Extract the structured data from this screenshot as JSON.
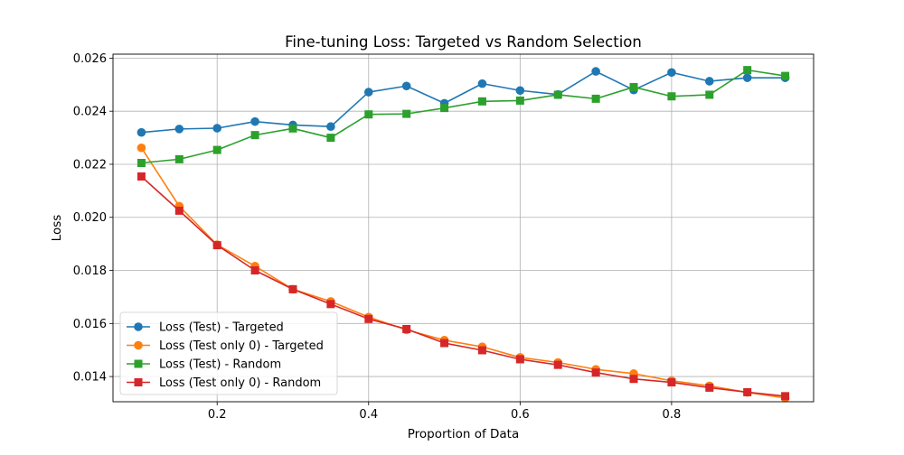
{
  "chart_data": {
    "type": "line",
    "title": "Fine-tuning Loss: Targeted vs Random Selection",
    "xlabel": "Proportion of Data",
    "ylabel": "Loss",
    "xlim": [
      0.0625,
      0.9875
    ],
    "ylim": [
      0.01305,
      0.02615
    ],
    "xticks": [
      0.2,
      0.4,
      0.6,
      0.8
    ],
    "xtick_labels": [
      "0.2",
      "0.4",
      "0.6",
      "0.8"
    ],
    "yticks": [
      0.014,
      0.016,
      0.018,
      0.02,
      0.022,
      0.024,
      0.026
    ],
    "ytick_labels": [
      "0.014",
      "0.016",
      "0.018",
      "0.020",
      "0.022",
      "0.024",
      "0.026"
    ],
    "grid": true,
    "legend_position": "lower-left",
    "x": [
      0.1,
      0.15,
      0.2,
      0.25,
      0.3,
      0.35,
      0.4,
      0.45,
      0.5,
      0.55,
      0.6,
      0.65,
      0.7,
      0.75,
      0.8,
      0.85,
      0.9,
      0.95
    ],
    "series": [
      {
        "name": "Loss (Test) - Targeted",
        "color": "#1f77b4",
        "marker": "circle",
        "values": [
          0.0232,
          0.02333,
          0.02336,
          0.02361,
          0.02348,
          0.02342,
          0.02472,
          0.02495,
          0.0243,
          0.02504,
          0.02478,
          0.02463,
          0.0255,
          0.0248,
          0.02546,
          0.02513,
          0.02526,
          0.02526
        ]
      },
      {
        "name": "Loss (Test only 0) - Targeted",
        "color": "#ff7f0e",
        "marker": "circle",
        "values": [
          0.02262,
          0.02042,
          0.01897,
          0.01816,
          0.01729,
          0.01683,
          0.01624,
          0.01576,
          0.01537,
          0.01512,
          0.01472,
          0.01453,
          0.01427,
          0.01411,
          0.01384,
          0.01365,
          0.0134,
          0.01319
        ]
      },
      {
        "name": "Loss (Test) - Random",
        "color": "#2ca02c",
        "marker": "square",
        "values": [
          0.02205,
          0.02219,
          0.02254,
          0.0231,
          0.02335,
          0.023,
          0.02388,
          0.0239,
          0.02412,
          0.02437,
          0.0244,
          0.02462,
          0.02447,
          0.02491,
          0.02456,
          0.02462,
          0.02555,
          0.02533
        ]
      },
      {
        "name": "Loss (Test only 0) - Random",
        "color": "#d62728",
        "marker": "square",
        "values": [
          0.02154,
          0.02025,
          0.01895,
          0.018,
          0.01729,
          0.01673,
          0.01617,
          0.01579,
          0.01526,
          0.01499,
          0.01465,
          0.01444,
          0.01415,
          0.01391,
          0.01378,
          0.01358,
          0.01341,
          0.01326
        ]
      }
    ]
  }
}
